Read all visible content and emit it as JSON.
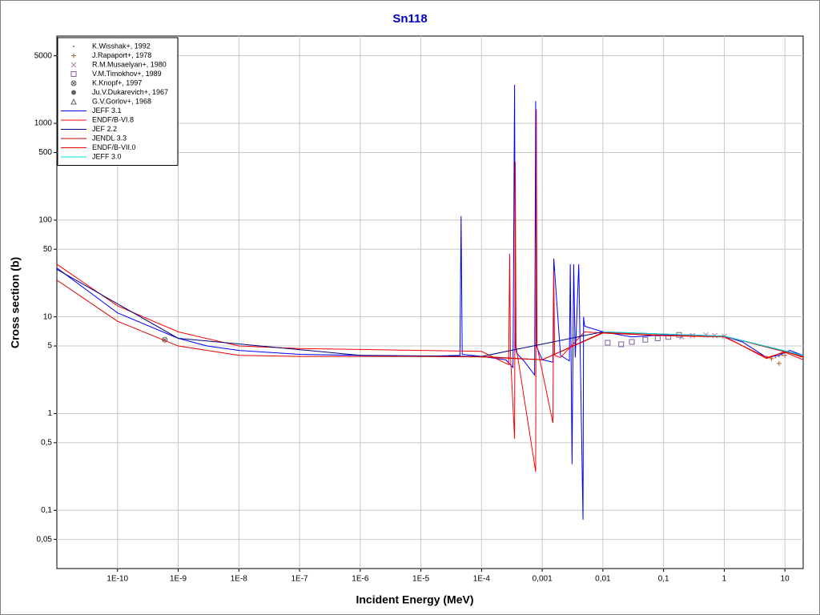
{
  "chart_data": {
    "type": "line",
    "title": "Sn118",
    "x_label": "Incident Energy (MeV)",
    "y_label": "Cross section (b)",
    "xscale": "log",
    "yscale": "log",
    "grid": true,
    "legend": "upper left",
    "xlim": [
      1e-11,
      20
    ],
    "ylim": [
      0.025,
      8000
    ],
    "xticks": [
      {
        "value": 1e-10,
        "label": "1E-10"
      },
      {
        "value": 1e-09,
        "label": "1E-9"
      },
      {
        "value": 1e-08,
        "label": "1E-8"
      },
      {
        "value": 1e-07,
        "label": "1E-7"
      },
      {
        "value": 1e-06,
        "label": "1E-6"
      },
      {
        "value": 1e-05,
        "label": "1E-5"
      },
      {
        "value": 0.0001,
        "label": "1E-4"
      },
      {
        "value": 0.001,
        "label": "0,001"
      },
      {
        "value": 0.01,
        "label": "0,01"
      },
      {
        "value": 0.1,
        "label": "0,1"
      },
      1,
      10
    ],
    "yticks": [
      {
        "value": 0.05,
        "label": "0,05"
      },
      {
        "value": 0.1,
        "label": "0,1"
      },
      {
        "value": 0.5,
        "label": "0,5"
      },
      1,
      5,
      10,
      50,
      100,
      500,
      1000,
      5000
    ],
    "series": [
      {
        "name": "K.Wisshak+, 1992",
        "kind": "points",
        "marker": "dot",
        "color": "#a07050",
        "x": [
          5,
          6,
          7,
          8,
          9
        ],
        "values": [
          3.9,
          3.8,
          3.8,
          3.9,
          4.0
        ]
      },
      {
        "name": "J.Rapaport+, 1978",
        "kind": "points",
        "marker": "plus",
        "color": "#b06030",
        "x": [
          6,
          8,
          10
        ],
        "values": [
          3.7,
          3.3,
          4.0
        ]
      },
      {
        "name": "R.M.Musaelyan+, 1980",
        "kind": "points",
        "marker": "x",
        "color": "#b080b0",
        "x": [
          0.2,
          0.3,
          0.5,
          0.7,
          1
        ],
        "values": [
          6.2,
          6.4,
          6.5,
          6.4,
          6.3
        ]
      },
      {
        "name": "V.M.Timokhov+, 1989",
        "kind": "points",
        "marker": "square",
        "color": "#8060a0",
        "x": [
          0.012,
          0.02,
          0.03,
          0.05,
          0.08,
          0.12,
          0.18
        ],
        "values": [
          5.4,
          5.2,
          5.5,
          5.8,
          6.0,
          6.2,
          6.5
        ]
      },
      {
        "name": "K.Knopf+, 1997",
        "kind": "points",
        "marker": "circlex",
        "color": "#606060",
        "x": [
          6e-10
        ],
        "values": [
          5.8
        ]
      },
      {
        "name": "Ju.V.Dukarevich+, 1967",
        "kind": "points",
        "marker": "circle",
        "color": "#606060",
        "x": [],
        "values": []
      },
      {
        "name": "G.V.Gorlov+, 1968",
        "kind": "points",
        "marker": "triangle",
        "color": "#606060",
        "x": [],
        "values": []
      },
      {
        "name": "JEFF 3.1",
        "kind": "line",
        "color": "#0000ff",
        "x": [
          1e-11,
          1e-10,
          1e-09,
          3e-09,
          1e-08,
          1e-07,
          1e-06,
          1e-05,
          4.4e-05,
          4.6e-05,
          4.8e-05,
          0.0001,
          0.00025,
          0.00033,
          0.00035,
          0.00036,
          0.00038,
          0.0005,
          0.00075,
          0.00078,
          0.0008,
          0.001,
          0.0015,
          0.00155,
          0.002,
          0.0028,
          0.0029,
          0.0031,
          0.0033,
          0.0035,
          0.004,
          0.0047,
          0.0048,
          0.005,
          0.01,
          0.03,
          0.1,
          0.3,
          1,
          2,
          5,
          8,
          12,
          20
        ],
        "values": [
          32,
          11,
          6.0,
          5.0,
          4.5,
          4.1,
          4.0,
          3.9,
          4.0,
          110,
          4.1,
          3.9,
          3.6,
          3.0,
          2500,
          5,
          4.2,
          3.5,
          2.5,
          1700,
          5,
          3.6,
          3.4,
          40,
          4,
          3.5,
          35,
          0.3,
          35,
          3.8,
          35,
          0.08,
          10,
          8,
          7,
          6.2,
          6.5,
          6.5,
          6.3,
          5.5,
          3.8,
          4.0,
          4.5,
          4.0
        ]
      },
      {
        "name": "ENDF/B-VI.8",
        "kind": "line",
        "color": "#ff0000",
        "x": [
          1e-11,
          1e-10,
          1e-09,
          1e-08,
          1e-07,
          1e-06,
          1e-05,
          0.0001,
          0.00028,
          0.00029,
          0.0003,
          0.00035,
          0.00036,
          0.00037,
          0.00078,
          0.0008,
          0.00082,
          0.0015,
          0.00155,
          0.0016,
          0.002,
          0.005,
          0.01,
          0.1,
          1,
          5,
          10,
          20
        ],
        "values": [
          35,
          13,
          7,
          5.0,
          4.7,
          4.6,
          4.5,
          4.4,
          3.2,
          45,
          4,
          0.55,
          400,
          5,
          0.25,
          1400,
          5,
          0.8,
          30,
          4,
          3.8,
          7,
          6.8,
          6.4,
          6.2,
          3.8,
          4.3,
          3.6
        ]
      },
      {
        "name": "JEF 2.2",
        "kind": "line",
        "color": "#000080",
        "x": [
          1e-11,
          1e-09,
          1e-06,
          0.0001,
          0.01,
          1,
          20
        ],
        "values": [
          31,
          6,
          4,
          3.9,
          7,
          6.3,
          4
        ]
      },
      {
        "name": "JENDL 3.3",
        "kind": "line",
        "color": "#c00000",
        "x": [
          0.0001,
          0.001,
          0.01,
          1,
          20
        ],
        "values": [
          3.9,
          3.6,
          6.9,
          6.3,
          3.9
        ]
      },
      {
        "name": "ENDF/B-VII.0",
        "kind": "line",
        "color": "#e00000",
        "x": [
          1e-11,
          1e-10,
          1e-09,
          1e-08,
          1e-07,
          1e-06,
          1e-05,
          0.0001,
          0.001,
          0.01,
          0.1,
          1,
          5,
          10,
          20
        ],
        "values": [
          24,
          9,
          5.0,
          4.0,
          3.9,
          3.9,
          3.9,
          3.85,
          3.6,
          6.8,
          6.4,
          6.3,
          3.7,
          4.4,
          3.8
        ]
      },
      {
        "name": "JEFF 3.0",
        "kind": "line",
        "color": "#00e0e0",
        "x": [
          0.01,
          1,
          20
        ],
        "values": [
          7,
          6.3,
          4
        ]
      }
    ]
  }
}
